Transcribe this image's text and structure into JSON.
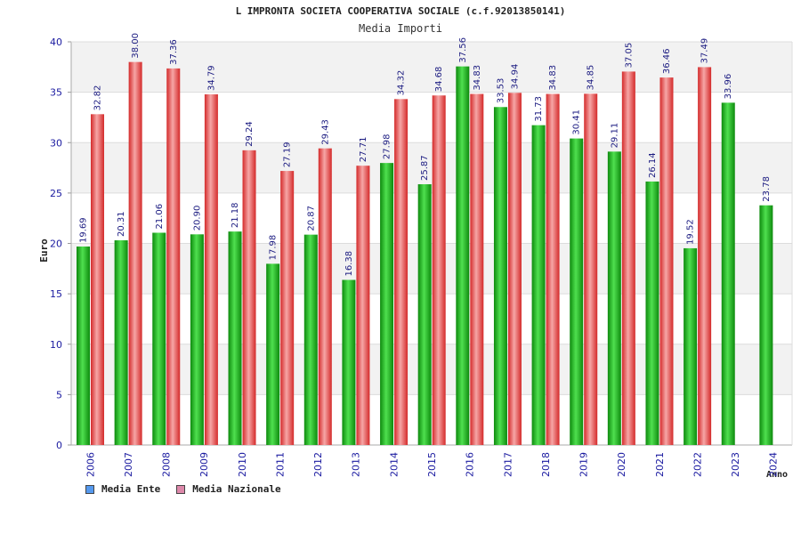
{
  "chart_data": {
    "type": "bar",
    "title": "L IMPRONTA SOCIETA COOPERATIVA SOCIALE (c.f.92013850141)",
    "subtitle": "Media Importi",
    "xlabel": "Anno",
    "ylabel": "Euro",
    "ylim": [
      0,
      40
    ],
    "yticks": [
      "0",
      "5",
      "10",
      "15",
      "20",
      "25",
      "30",
      "35",
      "40"
    ],
    "grid": true,
    "legend_position": "bottom-left",
    "categories": [
      "2006",
      "2007",
      "2008",
      "2009",
      "2010",
      "2011",
      "2012",
      "2013",
      "2014",
      "2015",
      "2016",
      "2017",
      "2018",
      "2019",
      "2020",
      "2021",
      "2022",
      "2023",
      "2024"
    ],
    "series": [
      {
        "name": "Media Ente",
        "color": "#22aa22",
        "legend_color": "#5599ee",
        "values": [
          19.69,
          20.31,
          21.06,
          20.9,
          21.18,
          17.98,
          20.87,
          16.38,
          27.98,
          25.87,
          37.56,
          33.53,
          31.73,
          30.41,
          29.11,
          26.14,
          19.52,
          33.96,
          23.78
        ],
        "labels": [
          "19.69",
          "20.31",
          "21.06",
          "20.90",
          "21.18",
          "17.98",
          "20.87",
          "16.38",
          "27.98",
          "25.87",
          "37.56",
          "33.53",
          "31.73",
          "30.41",
          "29.11",
          "26.14",
          "19.52",
          "33.96",
          "23.78"
        ]
      },
      {
        "name": "Media Nazionale",
        "color": "#e83a3a",
        "legend_color": "#dd88aa",
        "values": [
          32.82,
          38.0,
          37.36,
          34.79,
          29.24,
          27.19,
          29.43,
          27.71,
          34.32,
          34.68,
          34.83,
          34.94,
          34.83,
          34.85,
          37.05,
          36.46,
          37.49,
          null,
          null
        ],
        "labels": [
          "32.82",
          "38.00",
          "37.36",
          "34.79",
          "29.24",
          "27.19",
          "29.43",
          "27.71",
          "34.32",
          "34.68",
          "34.83",
          "34.94",
          "34.83",
          "34.85",
          "37.05",
          "36.46",
          "37.49",
          "",
          ""
        ]
      }
    ]
  }
}
